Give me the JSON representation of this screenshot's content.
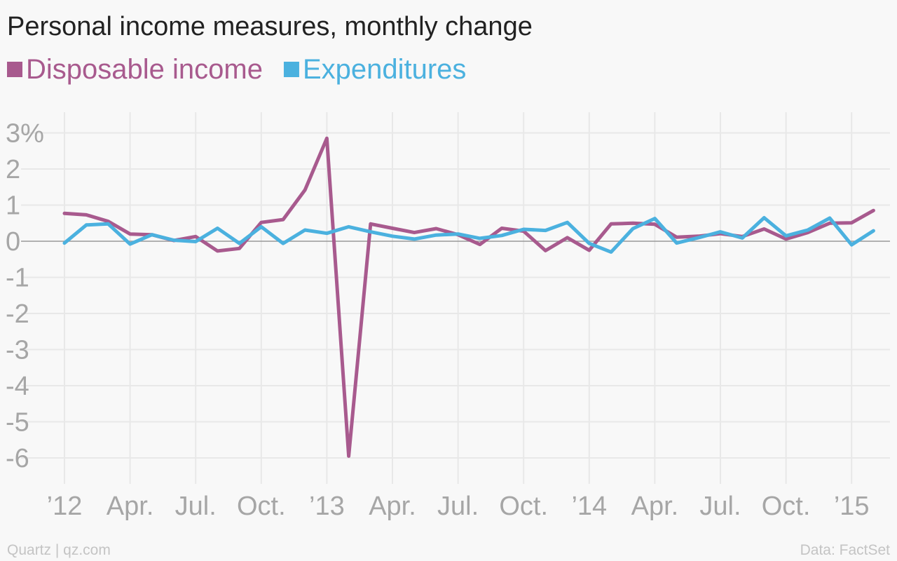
{
  "title": "Personal income measures, monthly change",
  "footer": {
    "source_left": "Quartz | qz.com",
    "source_right": "Data: FactSet"
  },
  "chart_data": {
    "type": "line",
    "title": "Personal income measures, monthly change",
    "xlabel": "",
    "ylabel": "",
    "ylim": [
      -6.5,
      3.0
    ],
    "xlim": [
      "2012-01",
      "2015-02"
    ],
    "x": [
      "2012-01",
      "2012-02",
      "2012-03",
      "2012-04",
      "2012-05",
      "2012-06",
      "2012-07",
      "2012-08",
      "2012-09",
      "2012-10",
      "2012-11",
      "2012-12",
      "2013-01",
      "2013-02",
      "2013-03",
      "2013-04",
      "2013-05",
      "2013-06",
      "2013-07",
      "2013-08",
      "2013-09",
      "2013-10",
      "2013-11",
      "2013-12",
      "2014-01",
      "2014-02",
      "2014-03",
      "2014-04",
      "2014-05",
      "2014-06",
      "2014-07",
      "2014-08",
      "2014-09",
      "2014-10",
      "2014-11",
      "2014-12",
      "2015-01",
      "2015-02"
    ],
    "series": [
      {
        "name": "Disposable income",
        "color": "#a85a8e",
        "values": [
          0.77,
          0.73,
          0.55,
          0.2,
          0.18,
          0.02,
          0.13,
          -0.27,
          -0.2,
          0.52,
          0.6,
          1.42,
          2.85,
          -5.95,
          0.48,
          0.36,
          0.24,
          0.35,
          0.18,
          -0.09,
          0.36,
          0.28,
          -0.26,
          0.1,
          -0.25,
          0.48,
          0.5,
          0.47,
          0.11,
          0.14,
          0.21,
          0.13,
          0.34,
          0.06,
          0.24,
          0.5,
          0.51,
          0.85
        ]
      },
      {
        "name": "Expenditures",
        "color": "#4bb1df",
        "values": [
          -0.05,
          0.45,
          0.48,
          -0.08,
          0.18,
          0.03,
          -0.01,
          0.36,
          -0.06,
          0.4,
          -0.06,
          0.31,
          0.22,
          0.4,
          0.26,
          0.14,
          0.06,
          0.17,
          0.2,
          0.08,
          0.16,
          0.33,
          0.3,
          0.52,
          -0.06,
          -0.3,
          0.35,
          0.63,
          -0.05,
          0.1,
          0.26,
          0.09,
          0.65,
          0.15,
          0.31,
          0.64,
          -0.1,
          0.29
        ]
      }
    ],
    "y_ticks": [
      {
        "value": 3,
        "label": "3%"
      },
      {
        "value": 2,
        "label": "2"
      },
      {
        "value": 1,
        "label": "1"
      },
      {
        "value": 0,
        "label": "0"
      },
      {
        "value": -1,
        "label": "-1"
      },
      {
        "value": -2,
        "label": "-2"
      },
      {
        "value": -3,
        "label": "-3"
      },
      {
        "value": -4,
        "label": "-4"
      },
      {
        "value": -5,
        "label": "-5"
      },
      {
        "value": -6,
        "label": "-6"
      }
    ],
    "x_ticks": [
      {
        "value": "2012-01",
        "label": "’12"
      },
      {
        "value": "2012-04",
        "label": "Apr."
      },
      {
        "value": "2012-07",
        "label": "Jul."
      },
      {
        "value": "2012-10",
        "label": "Oct."
      },
      {
        "value": "2013-01",
        "label": "’13"
      },
      {
        "value": "2013-04",
        "label": "Apr."
      },
      {
        "value": "2013-07",
        "label": "Jul."
      },
      {
        "value": "2013-10",
        "label": "Oct."
      },
      {
        "value": "2014-01",
        "label": "’14"
      },
      {
        "value": "2014-04",
        "label": "Apr."
      },
      {
        "value": "2014-07",
        "label": "Jul."
      },
      {
        "value": "2014-10",
        "label": "Oct."
      },
      {
        "value": "2015-01",
        "label": "’15"
      }
    ],
    "grid": true,
    "legend": "top-left"
  }
}
